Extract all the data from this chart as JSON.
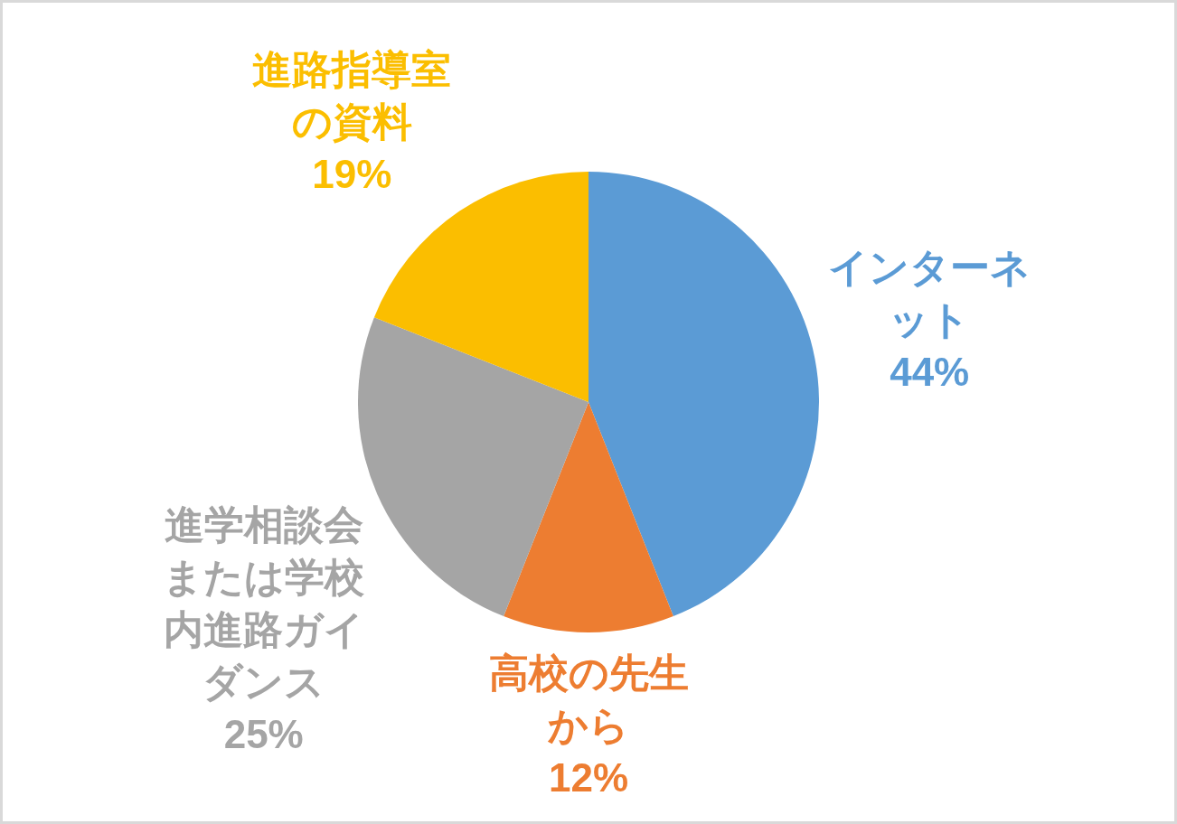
{
  "chart_data": {
    "type": "pie",
    "categories": [
      "インターネット",
      "高校の先生から",
      "進学相談会または学校内進路ガイダンス",
      "進路指導室の資料"
    ],
    "values": [
      44,
      12,
      25,
      19
    ],
    "colors": [
      "#5b9bd5",
      "#ed7d31",
      "#a5a5a5",
      "#fbbe00"
    ],
    "value_labels": [
      "44%",
      "12%",
      "25%",
      "19%"
    ]
  }
}
